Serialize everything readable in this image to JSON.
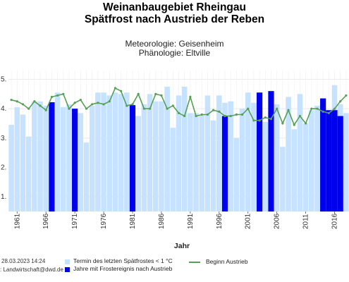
{
  "chart_data": {
    "type": "bar",
    "title": "Weinanbaugebiet Rheingau",
    "subtitle": "Spätfrost nach Austrieb der Reben",
    "meteorology": "Meteorologie: Geisenheim",
    "phenology": "Phänologie: Eltville",
    "xlabel": "Jahr",
    "ylabel": "",
    "ylim": [
      0.5,
      5.3
    ],
    "yticks": [
      "1.",
      "2.",
      "3.",
      "4.",
      "5."
    ],
    "ytick_values": [
      1,
      2,
      3,
      4,
      5
    ],
    "xticks": [
      "1961",
      "1966",
      "1971",
      "1976",
      "1981",
      "1986",
      "1991",
      "1996",
      "2001",
      "2006",
      "2011",
      "2016"
    ],
    "grid": true,
    "legend_position": "bottom",
    "years": [
      1960,
      1961,
      1962,
      1963,
      1964,
      1965,
      1966,
      1967,
      1968,
      1969,
      1970,
      1971,
      1972,
      1973,
      1974,
      1975,
      1976,
      1977,
      1978,
      1979,
      1980,
      1981,
      1982,
      1983,
      1984,
      1985,
      1986,
      1987,
      1988,
      1989,
      1990,
      1991,
      1992,
      1993,
      1994,
      1995,
      1996,
      1997,
      1998,
      1999,
      2000,
      2001,
      2002,
      2003,
      2004,
      2005,
      2006,
      2007,
      2008,
      2009,
      2010,
      2011,
      2012,
      2013,
      2014,
      2015,
      2016,
      2017,
      2018
    ],
    "series": [
      {
        "name": "Termin des letzten Spätfrostes < 1 °C",
        "color": "#c6e2ff",
        "values": [
          3.45,
          4.05,
          3.8,
          3.05,
          4.25,
          4.25,
          4.1,
          4.2,
          4.55,
          4.05,
          4.15,
          4.0,
          3.85,
          2.85,
          4.1,
          4.55,
          4.55,
          4.45,
          4.55,
          4.5,
          4.55,
          4.1,
          3.75,
          4.15,
          4.5,
          4.25,
          4.25,
          4.75,
          3.35,
          4.45,
          4.75,
          3.85,
          3.85,
          3.8,
          4.45,
          3.6,
          4.45,
          4.2,
          4.25,
          3.0,
          4.0,
          4.55,
          4.2,
          3.55,
          3.55,
          4.1,
          4.15,
          2.7,
          4.4,
          3.3,
          4.5,
          3.5,
          3.95,
          4.1,
          4.35,
          3.8,
          4.8,
          4.15,
          3.85
        ]
      },
      {
        "name": "Jahre mit Frostereignis nach Austrieb",
        "color": "#0000ee",
        "values": {
          "1967": 4.22,
          "1971": 4.0,
          "1981": 4.12,
          "1997": 3.75,
          "2003": 4.55,
          "2005": 4.6,
          "2014": 4.35,
          "2015": 3.95,
          "2016": 3.95,
          "2017": 3.75
        }
      },
      {
        "name": "Beginn Austrieb",
        "color": "#55a055",
        "values": [
          4.3,
          4.25,
          4.15,
          4.0,
          4.25,
          4.1,
          3.95,
          4.4,
          4.45,
          4.5,
          4.0,
          4.2,
          4.3,
          4.0,
          4.15,
          4.2,
          4.15,
          4.25,
          4.7,
          4.6,
          4.1,
          4.15,
          4.5,
          4.0,
          4.0,
          4.5,
          4.45,
          4.0,
          4.1,
          3.85,
          3.75,
          4.4,
          3.75,
          3.8,
          3.8,
          3.95,
          3.9,
          3.75,
          3.75,
          3.8,
          3.8,
          4.0,
          3.6,
          3.6,
          3.7,
          3.65,
          4.0,
          3.5,
          3.95,
          3.45,
          3.75,
          3.5,
          4.0,
          4.0,
          3.9,
          3.85,
          4.0,
          4.25,
          4.45
        ]
      }
    ]
  },
  "legend": {
    "frost_term": "Termin des letzten Spätfrostes < 1 °C",
    "frost_event": "Jahre mit Frostereignis nach Austrieb",
    "budbreak": "Beginn Austrieb"
  },
  "footer": {
    "date": "28.03.2023 14:24",
    "contact": ": Landwirtschaft@dwd.de"
  },
  "colors": {
    "light_bar": "#c6e2ff",
    "event_bar": "#0000ee",
    "line": "#55a055",
    "grid": "#e6e6e6"
  }
}
